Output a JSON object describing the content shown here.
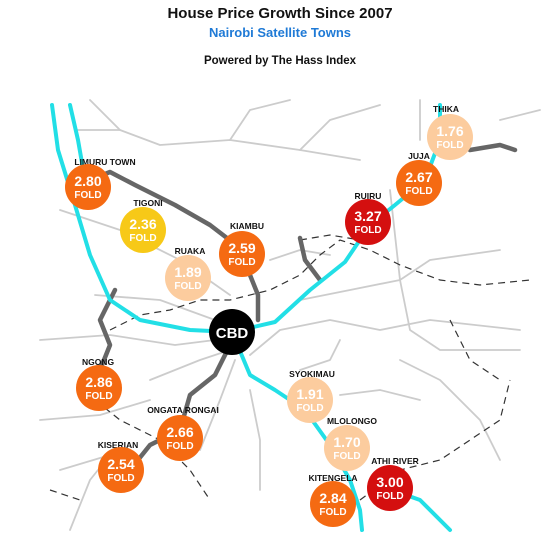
{
  "header": {
    "title": "House Price Growth Since 2007",
    "subtitle": "Nairobi Satellite Towns",
    "powered_by": "Powered by The Hass Index"
  },
  "colors": {
    "subtitle": "#1f7ad6",
    "highway": "#22dfe6",
    "bypass": "#666666",
    "minor_road": "#cccccc",
    "boundary": "#333333",
    "cbd": "#000000"
  },
  "cbd_label": "CBD",
  "fold_text": "FOLD",
  "towns": [
    {
      "name": "THIKA",
      "value": "1.76",
      "color": "#fccc9e"
    },
    {
      "name": "JUJA",
      "value": "2.67",
      "color": "#f56a12"
    },
    {
      "name": "RUIRU",
      "value": "3.27",
      "color": "#d40f0f"
    },
    {
      "name": "LIMURU TOWN",
      "value": "2.80",
      "color": "#f56a12"
    },
    {
      "name": "TIGONI",
      "value": "2.36",
      "color": "#f7c918"
    },
    {
      "name": "KIAMBU",
      "value": "2.59",
      "color": "#f56a12"
    },
    {
      "name": "RUAKA",
      "value": "1.89",
      "color": "#fccc9e"
    },
    {
      "name": "NGONG",
      "value": "2.86",
      "color": "#f56a12"
    },
    {
      "name": "SYOKIMAU",
      "value": "1.91",
      "color": "#fccc9e"
    },
    {
      "name": "ONGATA RONGAI",
      "value": "2.66",
      "color": "#f56a12"
    },
    {
      "name": "MLOLONGO",
      "value": "1.70",
      "color": "#fccc9e"
    },
    {
      "name": "KISERIAN",
      "value": "2.54",
      "color": "#f56a12"
    },
    {
      "name": "ATHI RIVER",
      "value": "3.00",
      "color": "#d40f0f"
    },
    {
      "name": "KITENGELA",
      "value": "2.84",
      "color": "#f56a12"
    }
  ]
}
